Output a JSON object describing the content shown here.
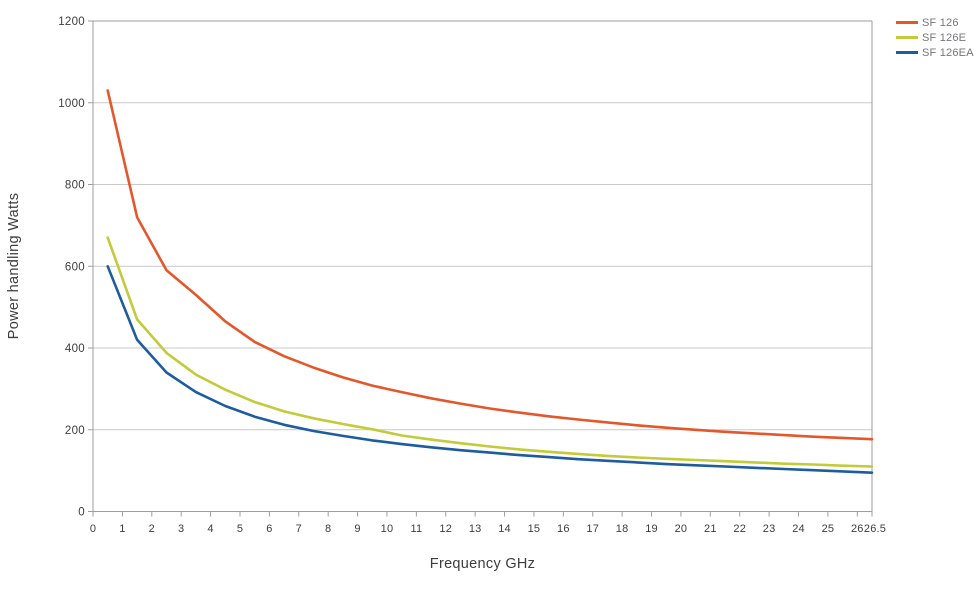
{
  "chart_data": {
    "type": "line",
    "title": "",
    "xlabel": "Frequency GHz",
    "ylabel": "Power handling Watts",
    "xlim": [
      0,
      26.5
    ],
    "ylim": [
      0,
      1200
    ],
    "x_tick_values": [
      0,
      1,
      2,
      3,
      4,
      5,
      6,
      7,
      8,
      9,
      10,
      11,
      12,
      13,
      14,
      15,
      16,
      17,
      18,
      19,
      20,
      21,
      22,
      23,
      24,
      25,
      26,
      26.5
    ],
    "x_tick_labels": [
      "0",
      "1",
      "2",
      "3",
      "4",
      "5",
      "6",
      "7",
      "8",
      "9",
      "10",
      "11",
      "12",
      "13",
      "14",
      "15",
      "16",
      "17",
      "18",
      "19",
      "20",
      "21",
      "22",
      "23",
      "24",
      "25",
      "26",
      "26.5"
    ],
    "y_tick_values": [
      0,
      200,
      400,
      600,
      800,
      1000,
      1200
    ],
    "y_tick_labels": [
      "0",
      "200",
      "400",
      "600",
      "800",
      "1000",
      "1200"
    ],
    "grid": "horizontal gridlines only, full border box",
    "legend_position": "top-right outside plot",
    "x": [
      0.5,
      1.5,
      2.5,
      3.5,
      4.5,
      5.5,
      6.5,
      7.5,
      8.5,
      9.5,
      10.5,
      11.5,
      12.5,
      13.5,
      14.5,
      15.5,
      16.5,
      17.5,
      18.5,
      19.5,
      20.5,
      21.5,
      22.5,
      23.5,
      24.5,
      25.5,
      26.5
    ],
    "series": [
      {
        "name": "SF 126",
        "color": "#e3572b",
        "values": [
          1030,
          720,
          590,
          530,
          465,
          415,
          380,
          352,
          328,
          308,
          292,
          277,
          264,
          252,
          242,
          233,
          225,
          218,
          211,
          205,
          200,
          195,
          191,
          187,
          183,
          180,
          177
        ]
      },
      {
        "name": "SF 126E",
        "color": "#c2cb3a",
        "values": [
          670,
          470,
          388,
          335,
          298,
          268,
          245,
          228,
          214,
          201,
          186,
          176,
          167,
          159,
          152,
          146,
          141,
          136,
          132,
          129,
          126,
          123,
          120,
          117,
          115,
          112,
          110
        ]
      },
      {
        "name": "SF 126EA",
        "color": "#1d5c9e",
        "values": [
          600,
          420,
          340,
          292,
          258,
          232,
          212,
          197,
          185,
          174,
          165,
          157,
          150,
          144,
          138,
          133,
          128,
          124,
          120,
          116,
          113,
          110,
          107,
          104,
          101,
          98,
          95
        ]
      }
    ]
  },
  "colors": {
    "background": "#ffffff",
    "axis": "#9e9e9e",
    "grid": "#c9c9c9",
    "tick_text": "#3d3d3c",
    "axis_title_text": "#3d3d3c",
    "legend_text": "#75767a"
  }
}
